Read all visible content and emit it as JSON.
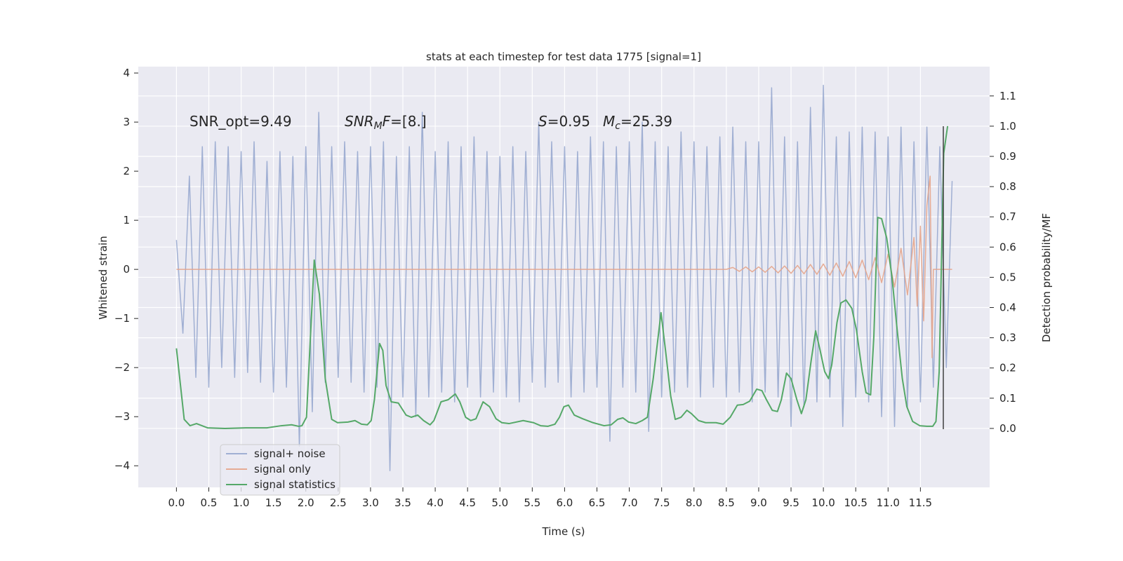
{
  "chart_data": {
    "type": "line",
    "title": "stats at each timestep for test data 1775 [signal=1]",
    "xlabel": "Time (s)",
    "ylabel": "Whitened strain",
    "y2label": "Detection probability/MF",
    "xlim": [
      -0.59,
      12.57
    ],
    "ylim": [
      -4.44,
      4.13
    ],
    "y2lim": [
      -0.195,
      1.197
    ],
    "xticks": [
      {
        "value": 0,
        "label": "0.0"
      },
      {
        "value": 0.5,
        "label": "0.5"
      },
      {
        "value": 1,
        "label": "1.0"
      },
      {
        "value": 1.5,
        "label": "1.5"
      },
      {
        "value": 2,
        "label": "2.0"
      },
      {
        "value": 2.5,
        "label": "2.5"
      },
      {
        "value": 3,
        "label": "3.0"
      },
      {
        "value": 3.5,
        "label": "3.5"
      },
      {
        "value": 4,
        "label": "4.0"
      },
      {
        "value": 4.5,
        "label": "4.5"
      },
      {
        "value": 5,
        "label": "5.0"
      },
      {
        "value": 5.5,
        "label": "5.5"
      },
      {
        "value": 6,
        "label": "6.0"
      },
      {
        "value": 6.5,
        "label": "6.5"
      },
      {
        "value": 7,
        "label": "7.0"
      },
      {
        "value": 7.5,
        "label": "7.5"
      },
      {
        "value": 8,
        "label": "8.0"
      },
      {
        "value": 8.5,
        "label": "8.5"
      },
      {
        "value": 9,
        "label": "9.0"
      },
      {
        "value": 9.5,
        "label": "9.5"
      },
      {
        "value": 10,
        "label": "10.0"
      },
      {
        "value": 10.5,
        "label": "10.5"
      },
      {
        "value": 11,
        "label": "11.0"
      },
      {
        "value": 11.5,
        "label": "11.5"
      }
    ],
    "yticks": [
      {
        "value": -4,
        "label": "−4"
      },
      {
        "value": -3,
        "label": "−3"
      },
      {
        "value": -2,
        "label": "−2"
      },
      {
        "value": -1,
        "label": "−1"
      },
      0,
      1,
      2,
      3,
      4
    ],
    "y2ticks": [
      {
        "value": 0,
        "label": "0.0"
      },
      {
        "value": 0.1,
        "label": "0.1"
      },
      {
        "value": 0.2,
        "label": "0.2"
      },
      {
        "value": 0.3,
        "label": "0.3"
      },
      {
        "value": 0.4,
        "label": "0.4"
      },
      {
        "value": 0.5,
        "label": "0.5"
      },
      {
        "value": 0.6,
        "label": "0.6"
      },
      {
        "value": 0.7,
        "label": "0.7"
      },
      {
        "value": 0.8,
        "label": "0.8"
      },
      {
        "value": 0.9,
        "label": "0.9"
      },
      {
        "value": 1.0,
        "label": "1.0"
      },
      {
        "value": 1.1,
        "label": "1.1"
      }
    ],
    "grid": true,
    "legend": "lower left",
    "series": [
      {
        "name": "signal+ noise",
        "color": "#8da0cb",
        "opacity": 0.8,
        "x": [
          0,
          0.1,
          0.2,
          0.3,
          0.4,
          0.5,
          0.6,
          0.7,
          0.8,
          0.9,
          1,
          1.1,
          1.2,
          1.3,
          1.4,
          1.5,
          1.6,
          1.7,
          1.8,
          1.9,
          2,
          2.1,
          2.2,
          2.3,
          2.4,
          2.5,
          2.6,
          2.7,
          2.8,
          2.9,
          3,
          3.1,
          3.2,
          3.3,
          3.4,
          3.5,
          3.6,
          3.7,
          3.8,
          3.9,
          4,
          4.1,
          4.2,
          4.3,
          4.4,
          4.5,
          4.6,
          4.7,
          4.8,
          4.9,
          5,
          5.1,
          5.2,
          5.3,
          5.4,
          5.5,
          5.6,
          5.7,
          5.8,
          5.9,
          6,
          6.1,
          6.2,
          6.3,
          6.4,
          6.5,
          6.6,
          6.7,
          6.8,
          6.9,
          7,
          7.1,
          7.2,
          7.3,
          7.4,
          7.5,
          7.6,
          7.7,
          7.8,
          7.9,
          8,
          8.1,
          8.2,
          8.3,
          8.4,
          8.5,
          8.6,
          8.7,
          8.8,
          8.9,
          9,
          9.1,
          9.2,
          9.3,
          9.4,
          9.5,
          9.6,
          9.7,
          9.8,
          9.9,
          10,
          10.1,
          10.2,
          10.3,
          10.4,
          10.5,
          10.6,
          10.7,
          10.8,
          10.9,
          11,
          11.1,
          11.2,
          11.3,
          11.4,
          11.5,
          11.6,
          11.7,
          11.8,
          11.9,
          11.99
        ],
        "values": [
          0.6,
          -1.3,
          1.9,
          -2.2,
          2.5,
          -2.4,
          2.6,
          -2.0,
          2.5,
          -2.2,
          2.4,
          -2.1,
          2.6,
          -2.3,
          2.2,
          -2.5,
          2.4,
          -2.4,
          2.3,
          -3.6,
          2.5,
          -2.9,
          3.2,
          -2.3,
          2.5,
          -2.2,
          2.6,
          -2.3,
          2.4,
          -2.5,
          2.5,
          -2.4,
          2.6,
          -4.1,
          2.3,
          -2.6,
          2.5,
          -3.0,
          3.2,
          -2.6,
          2.4,
          -2.5,
          2.6,
          -2.7,
          2.5,
          -2.4,
          2.7,
          -2.6,
          2.4,
          -2.5,
          2.3,
          -2.6,
          2.5,
          -2.7,
          2.4,
          -2.3,
          3.0,
          -2.4,
          2.6,
          -2.3,
          2.5,
          -2.6,
          2.4,
          -2.5,
          2.7,
          -2.4,
          2.6,
          -3.5,
          2.5,
          -2.4,
          2.6,
          -2.5,
          3.0,
          -3.3,
          2.6,
          -2.6,
          2.5,
          -2.5,
          2.8,
          -2.4,
          2.6,
          -2.6,
          2.5,
          -2.4,
          2.7,
          -2.6,
          2.9,
          -2.5,
          2.6,
          -2.7,
          2.6,
          -2.5,
          3.7,
          -2.6,
          2.7,
          -3.2,
          2.6,
          -2.8,
          3.3,
          -2.7,
          3.75,
          -2.6,
          2.7,
          -3.2,
          2.8,
          -2.6,
          2.9,
          -2.7,
          2.8,
          -3.0,
          2.7,
          -3.2,
          2.9,
          -2.8,
          2.6,
          -2.7,
          2.9,
          -2.4,
          2.5,
          -2.0,
          1.8
        ]
      },
      {
        "name": "signal only",
        "color": "#e5a48a",
        "opacity": 0.9,
        "x": [
          0,
          8.5,
          8.6,
          8.7,
          8.8,
          8.9,
          9.0,
          9.1,
          9.2,
          9.3,
          9.4,
          9.5,
          9.6,
          9.7,
          9.8,
          9.9,
          10.0,
          10.1,
          10.2,
          10.3,
          10.4,
          10.5,
          10.6,
          10.7,
          10.8,
          10.9,
          11.0,
          11.1,
          11.2,
          11.3,
          11.4,
          11.45,
          11.5,
          11.55,
          11.6,
          11.65,
          11.68,
          11.7,
          11.99
        ],
        "values": [
          0,
          0,
          0.04,
          -0.04,
          0.05,
          -0.05,
          0.05,
          -0.06,
          0.06,
          -0.07,
          0.07,
          -0.08,
          0.08,
          -0.09,
          0.1,
          -0.1,
          0.11,
          -0.12,
          0.13,
          -0.14,
          0.16,
          -0.17,
          0.19,
          -0.21,
          0.24,
          -0.27,
          0.31,
          -0.36,
          0.43,
          -0.52,
          0.65,
          -0.75,
          0.88,
          -1.05,
          1.3,
          1.9,
          -1.8,
          0,
          0
        ]
      },
      {
        "name": "signal statistics",
        "color": "#55a868",
        "axis": "y2",
        "opacity": 1,
        "x": [
          0,
          0.12,
          0.21,
          0.31,
          0.48,
          0.75,
          1.07,
          1.4,
          1.62,
          1.78,
          1.89,
          1.94,
          2.01,
          2.13,
          2.21,
          2.3,
          2.4,
          2.49,
          2.65,
          2.76,
          2.86,
          2.95,
          3.01,
          3.06,
          3.14,
          3.19,
          3.24,
          3.32,
          3.43,
          3.55,
          3.63,
          3.73,
          3.82,
          3.92,
          3.98,
          4.09,
          4.2,
          4.31,
          4.38,
          4.47,
          4.55,
          4.63,
          4.74,
          4.84,
          4.94,
          5.03,
          5.14,
          5.36,
          5.52,
          5.63,
          5.74,
          5.85,
          5.92,
          5.99,
          6.06,
          6.15,
          6.28,
          6.44,
          6.61,
          6.72,
          6.82,
          6.9,
          6.99,
          7.1,
          7.2,
          7.28,
          7.37,
          7.49,
          7.56,
          7.64,
          7.71,
          7.8,
          7.89,
          7.96,
          8.07,
          8.18,
          8.34,
          8.45,
          8.56,
          8.67,
          8.76,
          8.86,
          8.97,
          9.05,
          9.12,
          9.21,
          9.29,
          9.35,
          9.43,
          9.5,
          9.59,
          9.66,
          9.73,
          9.81,
          9.88,
          9.95,
          10.02,
          10.08,
          10.13,
          10.21,
          10.27,
          10.35,
          10.44,
          10.51,
          10.6,
          10.66,
          10.73,
          10.78,
          10.84,
          10.9,
          10.98,
          11.06,
          11.14,
          11.22,
          11.29,
          11.38,
          11.49,
          11.6,
          11.69,
          11.74,
          11.79,
          11.86,
          11.92
        ],
        "values": [
          0.265,
          0.03,
          0.009,
          0.016,
          0.002,
          0,
          0.002,
          0.002,
          0.009,
          0.012,
          0.007,
          0.009,
          0.037,
          0.557,
          0.443,
          0.165,
          0.03,
          0.019,
          0.021,
          0.026,
          0.014,
          0.012,
          0.026,
          0.095,
          0.281,
          0.258,
          0.142,
          0.088,
          0.084,
          0.044,
          0.037,
          0.044,
          0.026,
          0.012,
          0.026,
          0.088,
          0.095,
          0.114,
          0.088,
          0.037,
          0.026,
          0.032,
          0.088,
          0.072,
          0.032,
          0.019,
          0.016,
          0.026,
          0.019,
          0.009,
          0.007,
          0.014,
          0.037,
          0.072,
          0.077,
          0.044,
          0.032,
          0.019,
          0.009,
          0.012,
          0.03,
          0.035,
          0.021,
          0.016,
          0.026,
          0.037,
          0.165,
          0.383,
          0.258,
          0.107,
          0.03,
          0.037,
          0.06,
          0.049,
          0.026,
          0.019,
          0.019,
          0.014,
          0.037,
          0.077,
          0.079,
          0.09,
          0.13,
          0.125,
          0.095,
          0.06,
          0.056,
          0.095,
          0.183,
          0.165,
          0.095,
          0.049,
          0.095,
          0.223,
          0.323,
          0.258,
          0.188,
          0.165,
          0.211,
          0.35,
          0.415,
          0.425,
          0.397,
          0.327,
          0.188,
          0.118,
          0.111,
          0.304,
          0.698,
          0.694,
          0.629,
          0.501,
          0.327,
          0.165,
          0.072,
          0.023,
          0.009,
          0.007,
          0.007,
          0.023,
          0.188,
          0.91,
          1.0
        ]
      }
    ],
    "annotations": [
      {
        "parts": [
          {
            "text": "SNR_opt=9.49",
            "style": "normal"
          }
        ]
      },
      {
        "parts": [
          {
            "text": "SNR",
            "style": "italic"
          },
          {
            "text": "M",
            "style": "italic-sub"
          },
          {
            "text": "F",
            "style": "italic"
          },
          {
            "text": "=[8.]",
            "style": "normal"
          }
        ]
      },
      {
        "parts": [
          {
            "text": "S",
            "style": "italic"
          },
          {
            "text": "=0.95",
            "style": "normal"
          }
        ]
      },
      {
        "parts": [
          {
            "text": "M",
            "style": "italic"
          },
          {
            "text": "c",
            "style": "italic-sub"
          },
          {
            "text": "=25.39",
            "style": "normal"
          }
        ]
      }
    ]
  }
}
